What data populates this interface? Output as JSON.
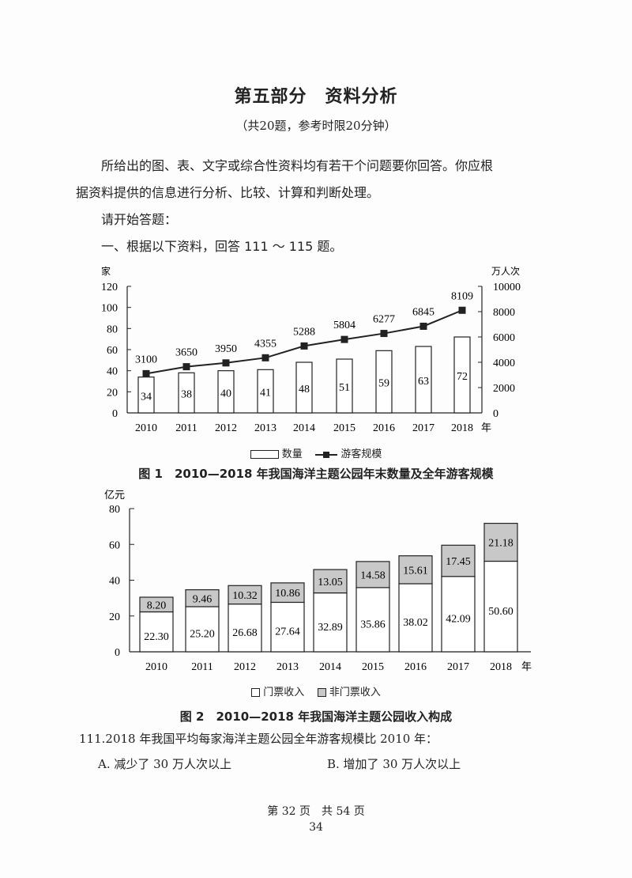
{
  "header": {
    "title": "第五部分　资料分析",
    "subtitle": "（共20题，参考时限20分钟）"
  },
  "intro": {
    "paragraph_line1": "所给出的图、表、文字或综合性资料均有若干个问题要你回答。你应根",
    "paragraph_line2": "据资料提供的信息进行分析、比较、计算和判断处理。",
    "start": "请开始答题：",
    "section": "一、根据以下资料，回答 111 ～ 115 题。"
  },
  "chart_data": [
    {
      "type": "bar+line",
      "title": "图 1　2010—2018 年我国海洋主题公园年末数量及全年游客规模",
      "categories": [
        "2010",
        "2011",
        "2012",
        "2013",
        "2014",
        "2015",
        "2016",
        "2017",
        "2018"
      ],
      "x_suffix": "年",
      "ylabel_left": "家",
      "ylabel_right": "万人次",
      "ylim_left": [
        0,
        120
      ],
      "yticks_left": [
        "0",
        "20",
        "40",
        "60",
        "80",
        "100",
        "120"
      ],
      "ylim_right": [
        0,
        10000
      ],
      "yticks_right": [
        "0",
        "2000",
        "4000",
        "6000",
        "8000",
        "10000"
      ],
      "series": [
        {
          "name": "数量",
          "type": "bar",
          "axis": "left",
          "values": [
            34,
            38,
            40,
            41,
            48,
            51,
            59,
            63,
            72
          ]
        },
        {
          "name": "游客规模",
          "type": "line",
          "axis": "right",
          "values": [
            3100,
            3650,
            3950,
            4355,
            5288,
            5804,
            6277,
            6845,
            8109
          ]
        }
      ],
      "legend": [
        "数量",
        "游客规模"
      ],
      "legend_position": "bottom"
    },
    {
      "type": "stacked-bar",
      "title": "图 2　2010—2018 年我国海洋主题公园收入构成",
      "categories": [
        "2010",
        "2011",
        "2012",
        "2013",
        "2014",
        "2015",
        "2016",
        "2017",
        "2018"
      ],
      "x_suffix": "年",
      "ylabel": "亿元",
      "ylim": [
        0,
        80
      ],
      "yticks": [
        "0",
        "20",
        "40",
        "60",
        "80"
      ],
      "series": [
        {
          "name": "门票收入",
          "values": [
            22.3,
            25.2,
            26.68,
            27.64,
            32.89,
            35.86,
            38.02,
            42.09,
            50.6
          ],
          "color": "#ffffff"
        },
        {
          "name": "非门票收入",
          "values": [
            8.2,
            9.46,
            10.32,
            10.86,
            13.05,
            14.58,
            15.61,
            17.45,
            21.18
          ],
          "color": "#c8c8c8"
        }
      ],
      "legend": [
        "门票收入",
        "非门票收入"
      ],
      "legend_position": "bottom"
    }
  ],
  "question": {
    "stem": "111.2018 年我国平均每家海洋主题公园全年游客规模比 2010 年：",
    "option_a": "A. 减少了 30 万人次以上",
    "option_b": "B. 增加了 30 万人次以上"
  },
  "footer": {
    "page_info": "第 32 页　共 54 页",
    "page_number": "34"
  },
  "colors": {
    "ink": "#222222",
    "bar_gray": "#c8c8c8"
  }
}
